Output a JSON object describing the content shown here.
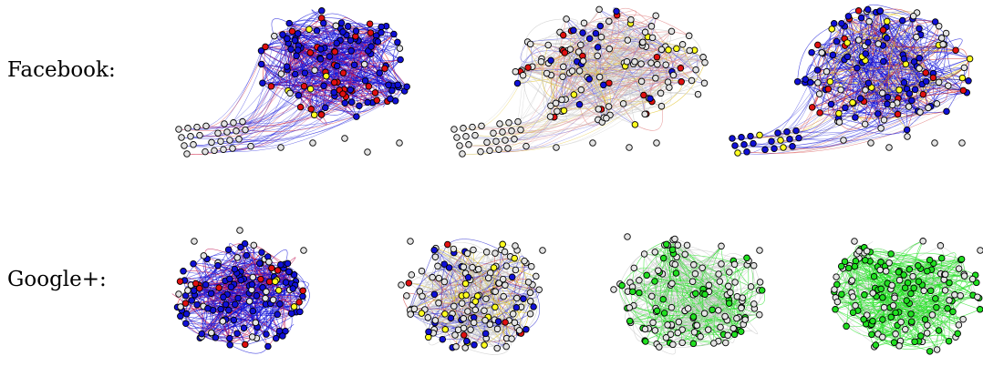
{
  "rows": [
    {
      "id": "facebook",
      "label": "Facebook:",
      "panels": [
        {
          "id": "fb-1",
          "colors": {
            "blue": 0.72,
            "red": 0.18,
            "yellow": 0.02,
            "green": 0,
            "gray": 0.08
          },
          "edges": "blue-red"
        },
        {
          "id": "fb-2",
          "colors": {
            "blue": 0.15,
            "red": 0.12,
            "yellow": 0.08,
            "green": 0,
            "gray": 0.65
          },
          "edges": "gray-red-blue"
        },
        {
          "id": "fb-3",
          "colors": {
            "blue": 0.45,
            "red": 0.12,
            "yellow": 0.15,
            "green": 0,
            "gray": 0.28
          },
          "edges": "blue-red-yellow"
        }
      ]
    },
    {
      "id": "googleplus",
      "label": "Google+:",
      "panels": [
        {
          "id": "gp-1",
          "colors": {
            "blue": 0.62,
            "red": 0.14,
            "yellow": 0.08,
            "green": 0,
            "gray": 0.16
          },
          "edges": "blue-red"
        },
        {
          "id": "gp-2",
          "colors": {
            "blue": 0.18,
            "red": 0.06,
            "yellow": 0.1,
            "green": 0,
            "gray": 0.66
          },
          "edges": "gray-blue-yellow"
        },
        {
          "id": "gp-3",
          "colors": {
            "blue": 0,
            "red": 0,
            "yellow": 0,
            "green": 0.22,
            "gray": 0.78
          },
          "edges": "gray-green"
        },
        {
          "id": "gp-4",
          "colors": {
            "blue": 0,
            "red": 0,
            "yellow": 0,
            "green": 0.62,
            "gray": 0.38
          },
          "edges": "green"
        }
      ]
    }
  ],
  "palette": {
    "blue": "#1010d8",
    "red": "#e01010",
    "yellow": "#ffff20",
    "green": "#20e020",
    "gray": "#e4e4e4",
    "edge_gray": "#c8c8c8"
  }
}
